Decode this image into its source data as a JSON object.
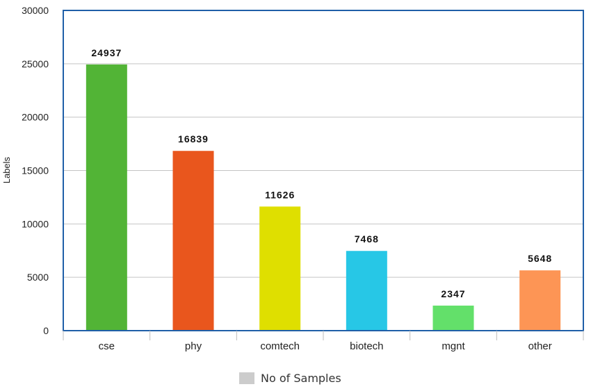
{
  "chart_data": {
    "type": "bar",
    "title": "",
    "xlabel": "",
    "ylabel": "Labels",
    "ylim": [
      0,
      30000
    ],
    "yticks": [
      0,
      5000,
      10000,
      15000,
      20000,
      25000,
      30000
    ],
    "categories": [
      "cse",
      "phy",
      "comtech",
      "biotech",
      "mgnt",
      "other"
    ],
    "series": [
      {
        "name": "No of Samples",
        "values": [
          24937,
          16839,
          11626,
          7468,
          2347,
          5648
        ],
        "value_labels": [
          "24937",
          "16839",
          "11626",
          "7468",
          "2347",
          "5648"
        ]
      }
    ],
    "bar_colors": [
      "#52b436",
      "#e9561d",
      "#dfdf00",
      "#27c7e6",
      "#63e06a",
      "#fd9555"
    ],
    "grid": true,
    "legend": {
      "position": "bottom",
      "swatch_color": "#cccccc"
    },
    "frame_color": "#1f5fa8"
  }
}
